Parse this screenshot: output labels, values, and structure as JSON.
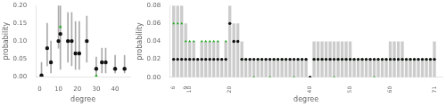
{
  "chart_data": [
    {
      "type": "range",
      "x": [
        1,
        4,
        6,
        10,
        11,
        15,
        17,
        19,
        21,
        25,
        30,
        33,
        35,
        40,
        45
      ],
      "low": [
        0.0,
        0.03,
        0.01,
        0.08,
        0.02,
        0.04,
        0.03,
        0.02,
        0.02,
        0.04,
        0.0,
        0.01,
        0.01,
        0.01,
        0.01
      ],
      "high": [
        0.04,
        0.15,
        0.1,
        0.2,
        0.2,
        0.18,
        0.18,
        0.155,
        0.155,
        0.17,
        0.055,
        0.08,
        0.08,
        0.06,
        0.06
      ],
      "color": "#aaaaaa",
      "series": [
        {
          "type": "scatter",
          "marker": "circle",
          "color": "#111111",
          "values": [
            0.003,
            0.08,
            0.04,
            0.1,
            0.12,
            0.1,
            0.1,
            0.065,
            0.065,
            0.1,
            0.022,
            0.04,
            0.04,
            0.022,
            0.022
          ]
        },
        {
          "type": "scatter",
          "marker": "triangle",
          "color": "#22aa22",
          "values": [
            0.004,
            0.08,
            0.04,
            0.1,
            0.14,
            0.1,
            0.1,
            0.065,
            0.065,
            0.1,
            0.002,
            0.04,
            0.04,
            0.02,
            0.02
          ]
        }
      ],
      "xlabel": "degree",
      "ylabel": "probability",
      "xlim": [
        -2,
        48
      ],
      "xticks": [
        0,
        10,
        20,
        30,
        40
      ],
      "ylim": [
        0.0,
        0.2
      ],
      "yticks": [
        {
          "value": 0.0,
          "label": "0.00"
        },
        0.05,
        {
          "value": 0.1,
          "label": "0.10"
        },
        0.15,
        {
          "value": 0.2,
          "label": "0.20"
        }
      ],
      "grid": false
    },
    {
      "type": "bar",
      "x": [
        6,
        7,
        8,
        9,
        10,
        11,
        12,
        13,
        14,
        15,
        16,
        17,
        18,
        19,
        20,
        21,
        22,
        23,
        24,
        25,
        26,
        27,
        28,
        29,
        30,
        31,
        32,
        33,
        34,
        35,
        36,
        37,
        38,
        39,
        40,
        41,
        42,
        43,
        44,
        45,
        46,
        47,
        48,
        49,
        50,
        51,
        52,
        53,
        54,
        55,
        56,
        57,
        58,
        59,
        60,
        61,
        62,
        63,
        64,
        65,
        66,
        67,
        68,
        69,
        70,
        71
      ],
      "low": [
        0.0,
        0.0,
        0.0,
        0.0,
        0.0,
        0.0,
        0.0,
        0.0,
        0.0,
        0.0,
        0.0,
        0.0,
        0.0,
        0.0,
        0.0,
        0.0,
        0.0,
        0.0,
        0.0,
        0.0,
        0.0,
        0.0,
        0.0,
        0.0,
        0.0,
        0.0,
        0.0,
        0.0,
        0.0,
        0.0,
        0.0,
        0.0,
        0.0,
        0.0,
        0.0,
        0.0,
        0.0,
        0.0,
        0.0,
        0.0,
        0.0,
        0.0,
        0.0,
        0.0,
        0.0,
        0.0,
        0.0,
        0.0,
        0.0,
        0.0,
        0.0,
        0.0,
        0.0,
        0.0,
        0.0,
        0.0,
        0.0,
        0.0,
        0.0,
        0.0,
        0.0,
        0.0,
        0.0,
        0.0,
        0.0,
        0.0
      ],
      "high": [
        0.08,
        0.08,
        0.08,
        0.06,
        0.04,
        0.04,
        0.02,
        0.04,
        0.04,
        0.04,
        0.04,
        0.04,
        0.02,
        0.04,
        0.08,
        0.06,
        0.06,
        0.04,
        0.02,
        0.02,
        0.02,
        0.02,
        0.02,
        0.02,
        0.02,
        0.02,
        0.02,
        0.02,
        0.02,
        0.02,
        0.02,
        0.02,
        0.02,
        0.02,
        0.0,
        0.04,
        0.04,
        0.04,
        0.04,
        0.04,
        0.04,
        0.04,
        0.04,
        0.04,
        0.04,
        0.02,
        0.02,
        0.02,
        0.02,
        0.02,
        0.02,
        0.02,
        0.02,
        0.02,
        0.04,
        0.04,
        0.04,
        0.04,
        0.02,
        0.02,
        0.02,
        0.02,
        0.02,
        0.02,
        0.02,
        0.04
      ],
      "color": "#cccccc",
      "series": [
        {
          "type": "scatter",
          "marker": "circle",
          "color": "#111111",
          "values": [
            0.02,
            0.02,
            0.02,
            0.02,
            0.02,
            0.02,
            0.02,
            0.02,
            0.02,
            0.02,
            0.02,
            0.02,
            0.02,
            0.02,
            0.06,
            0.04,
            0.04,
            0.02,
            0.02,
            0.02,
            0.02,
            0.02,
            0.02,
            0.02,
            0.02,
            0.02,
            0.02,
            0.02,
            0.02,
            0.02,
            0.02,
            0.02,
            0.02,
            0.02,
            0.0,
            0.02,
            0.02,
            0.02,
            0.02,
            0.02,
            0.02,
            0.02,
            0.02,
            0.02,
            0.02,
            0.02,
            0.02,
            0.02,
            0.02,
            0.02,
            0.02,
            0.02,
            0.02,
            0.02,
            0.02,
            0.02,
            0.02,
            0.02,
            0.02,
            0.02,
            0.02,
            0.02,
            0.02,
            0.02,
            0.02,
            0.02
          ]
        },
        {
          "type": "scatter",
          "marker": "triangle",
          "color": "#22aa22",
          "values": [
            0.06,
            0.06,
            0.06,
            0.04,
            0.04,
            0.04,
            0.02,
            0.04,
            0.04,
            0.04,
            0.04,
            0.04,
            0.02,
            0.04,
            0.06,
            0.04,
            0.04,
            0.02,
            0.02,
            0.02,
            0.0,
            0.02,
            0.02,
            0.02,
            0.0,
            0.02,
            0.02,
            0.02,
            0.02,
            0.02,
            0.0,
            0.02,
            0.02,
            0.02,
            0.0,
            0.02,
            0.02,
            0.02,
            0.02,
            0.02,
            0.0,
            0.02,
            0.02,
            0.02,
            0.02,
            0.02,
            0.02,
            0.02,
            0.02,
            0.02,
            0.0,
            0.02,
            0.02,
            0.02,
            0.02,
            0.02,
            0.02,
            0.02,
            0.02,
            0.02,
            0.02,
            0.02,
            0.02,
            0.02,
            0.02,
            0.02
          ]
        }
      ],
      "xlabel": "degree",
      "ylabel": "probability",
      "xlim": [
        5,
        73
      ],
      "xticks": [
        6,
        9,
        10,
        20,
        40,
        50,
        60,
        71
      ],
      "ylim": [
        0.0,
        0.08
      ],
      "yticks": [
        {
          "value": 0.0,
          "label": "0.00"
        },
        0.02,
        0.04,
        0.06,
        0.08
      ],
      "grid": false
    }
  ]
}
